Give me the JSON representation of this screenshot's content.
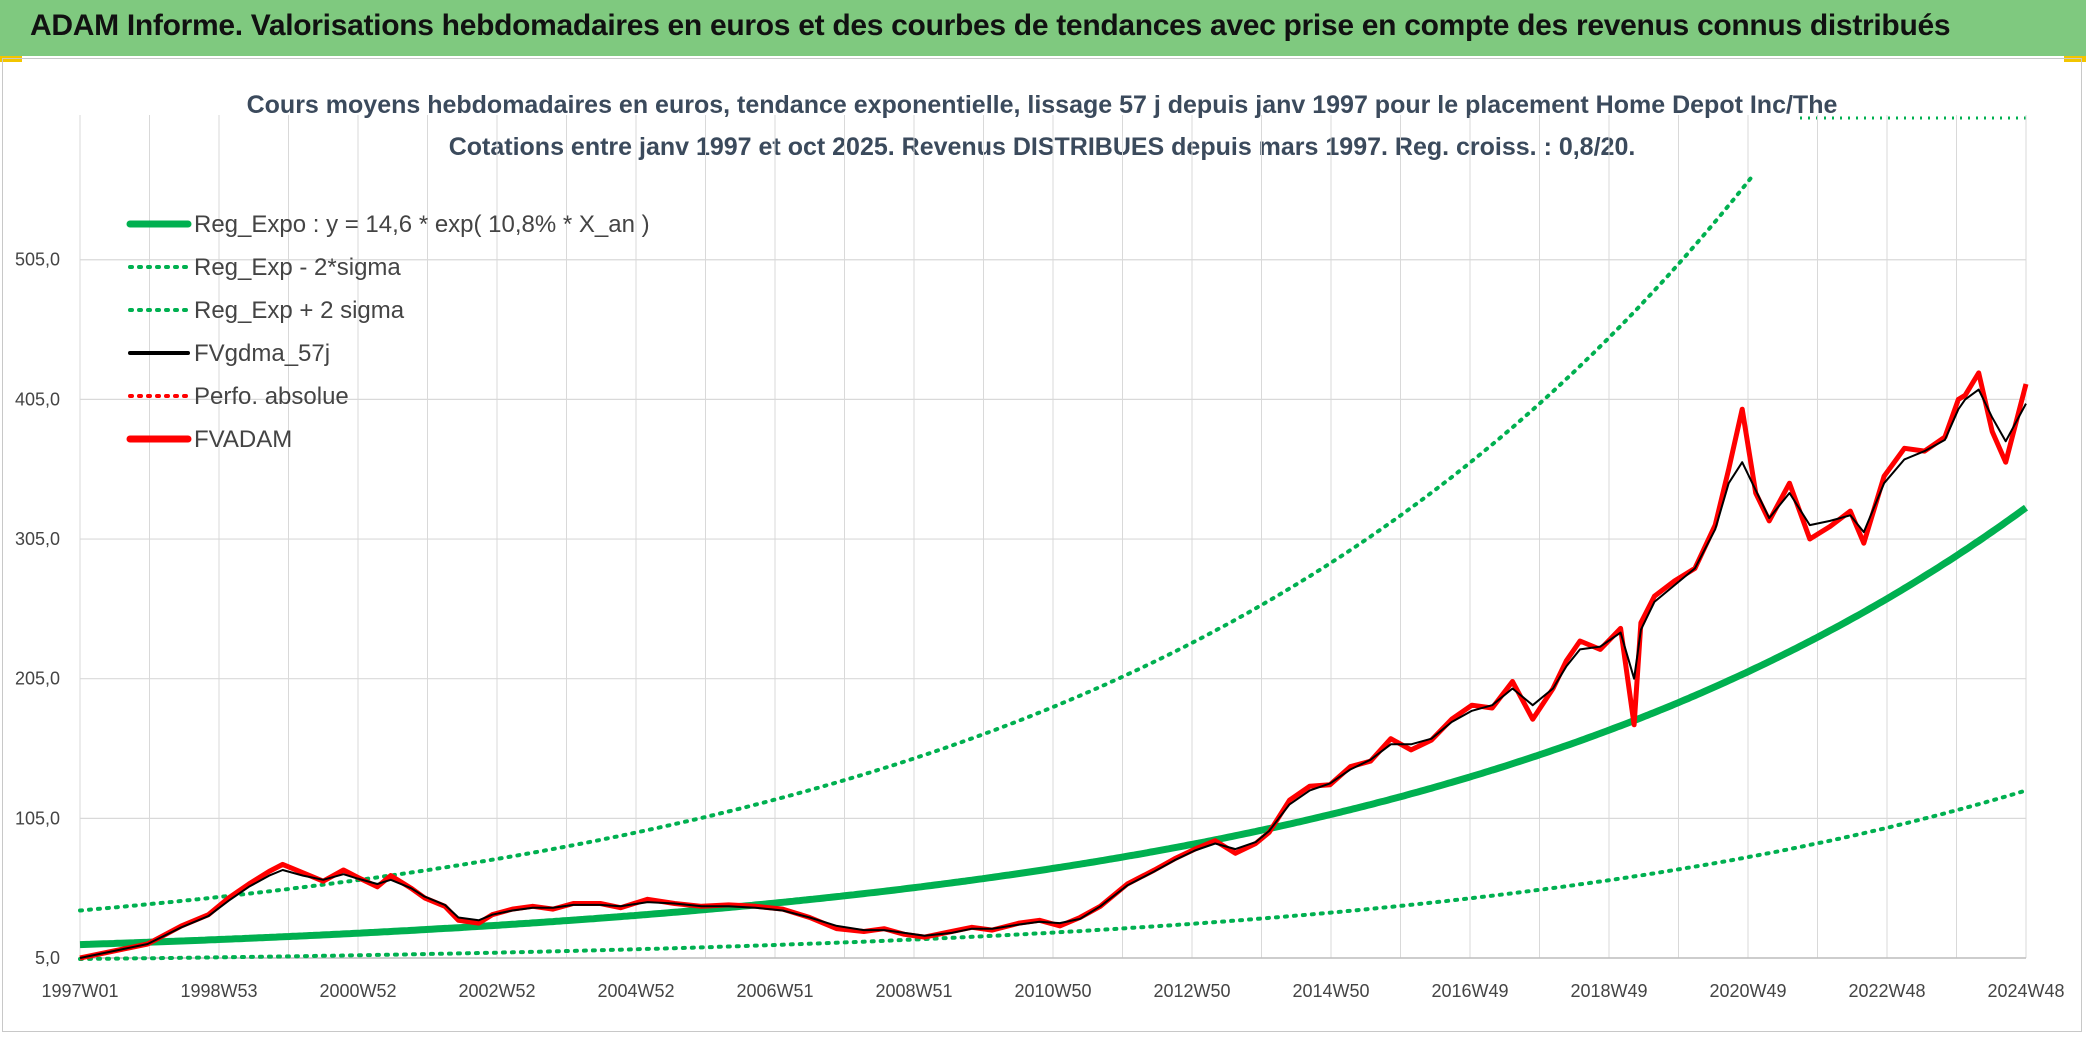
{
  "header": {
    "title": "ADAM Informe. Valorisations hebdomadaires en euros et des courbes de tendances avec prise en compte des revenus connus distribués"
  },
  "colors": {
    "header_bg": "#7fc97f",
    "trend": "#00b050",
    "fv": "#000000",
    "adam": "#ff0000",
    "perf": "#ff0000",
    "grid": "#d9d9d9"
  },
  "chart_data": {
    "type": "line",
    "title_line1": "Cours moyens hebdomadaires en euros, tendance exponentielle, lissage 57 j depuis janv 1997 pour le placement Home Depot Inc/The",
    "title_line2": "Cotations entre janv 1997 et oct 2025. Revenus DISTRIBUES depuis mars 1997. Reg. croiss. : 0,8/20.",
    "x_tick_labels": [
      "1997W01",
      "1998W53",
      "2000W52",
      "2002W52",
      "2004W52",
      "2006W51",
      "2008W51",
      "2010W50",
      "2012W50",
      "2014W50",
      "2016W49",
      "2018W49",
      "2020W49",
      "2022W48",
      "2024W48"
    ],
    "x_range": [
      1997.0,
      2025.8
    ],
    "y_tick_labels": [
      "5,0",
      "105,0",
      "205,0",
      "305,0",
      "405,0",
      "505,0"
    ],
    "ylim": [
      5,
      580
    ],
    "legend": [
      {
        "name": "Reg_Expo : y = 14,6 * exp( 10,8% *  X_an )",
        "style": "solid-thick",
        "color": "#00b050"
      },
      {
        "name": "Reg_Exp - 2*sigma",
        "style": "dotted",
        "color": "#00b050"
      },
      {
        "name": "Reg_Exp + 2 sigma",
        "style": "dotted",
        "color": "#00b050"
      },
      {
        "name": "FVgdma_57j",
        "style": "solid",
        "color": "#000000"
      },
      {
        "name": "Perfo. absolue",
        "style": "dotted",
        "color": "#ff0000"
      },
      {
        "name": "FVADAM",
        "style": "solid-thick",
        "color": "#ff0000"
      }
    ],
    "series": [
      {
        "name": "Reg_Expo",
        "formula": {
          "a": 14.6,
          "b": 0.108,
          "x0": 1997.0
        }
      },
      {
        "name": "Reg_Exp - 2*sigma",
        "formula": {
          "a": 4.3,
          "b": 0.117,
          "x0": 1997.0
        }
      },
      {
        "name": "Reg_Exp + 2 sigma",
        "formula": {
          "a": 39.0,
          "b": 0.108,
          "x0": 1997.0
        }
      },
      {
        "name": "FVADAM",
        "x": [
          1997.0,
          1997.5,
          1998.0,
          1998.5,
          1998.9,
          1999.2,
          1999.5,
          1999.8,
          2000.0,
          2000.3,
          2000.6,
          2000.9,
          2001.1,
          2001.4,
          2001.6,
          2001.9,
          2002.1,
          2002.4,
          2002.6,
          2002.9,
          2003.1,
          2003.4,
          2003.7,
          2004.0,
          2004.3,
          2004.7,
          2005.0,
          2005.4,
          2005.8,
          2006.2,
          2006.6,
          2007.0,
          2007.4,
          2007.8,
          2008.2,
          2008.6,
          2008.9,
          2009.2,
          2009.5,
          2009.9,
          2010.2,
          2010.5,
          2010.9,
          2011.2,
          2011.5,
          2011.8,
          2012.1,
          2012.5,
          2012.9,
          2013.2,
          2013.5,
          2013.8,
          2014.1,
          2014.4,
          2014.6,
          2014.9,
          2015.2,
          2015.5,
          2015.8,
          2016.1,
          2016.4,
          2016.7,
          2017.0,
          2017.3,
          2017.6,
          2017.9,
          2018.2,
          2018.5,
          2018.8,
          2019.0,
          2019.2,
          2019.5,
          2019.8,
          2020.0,
          2020.1,
          2020.3,
          2020.6,
          2020.9,
          2021.2,
          2021.4,
          2021.6,
          2021.8,
          2022.0,
          2022.3,
          2022.6,
          2022.9,
          2023.2,
          2023.4,
          2023.7,
          2024.0,
          2024.3,
          2024.6,
          2024.8,
          2024.9,
          2025.1,
          2025.3,
          2025.5,
          2025.8
        ],
        "values": [
          5,
          10,
          15,
          28,
          36,
          48,
          58,
          67,
          72,
          66,
          60,
          68,
          63,
          56,
          64,
          55,
          48,
          42,
          32,
          30,
          36,
          40,
          42,
          40,
          44,
          44,
          41,
          47,
          44,
          42,
          43,
          42,
          40,
          34,
          26,
          24,
          26,
          22,
          20,
          24,
          27,
          25,
          30,
          32,
          28,
          34,
          42,
          58,
          68,
          76,
          83,
          89,
          80,
          87,
          95,
          118,
          128,
          129,
          142,
          146,
          162,
          154,
          161,
          176,
          186,
          184,
          203,
          176,
          198,
          218,
          232,
          226,
          241,
          172,
          245,
          264,
          275,
          284,
          315,
          355,
          398,
          338,
          318,
          345,
          305,
          314,
          325,
          302,
          350,
          370,
          368,
          378,
          405,
          408,
          424,
          382,
          360,
          416
        ]
      },
      {
        "name": "FVgdma_57j",
        "x": [
          1997.0,
          1997.5,
          1998.0,
          1998.5,
          1998.9,
          1999.2,
          1999.5,
          1999.8,
          2000.0,
          2000.3,
          2000.6,
          2000.9,
          2001.1,
          2001.4,
          2001.6,
          2001.9,
          2002.1,
          2002.4,
          2002.6,
          2002.9,
          2003.1,
          2003.4,
          2003.7,
          2004.0,
          2004.3,
          2004.7,
          2005.0,
          2005.4,
          2005.8,
          2006.2,
          2006.6,
          2007.0,
          2007.4,
          2007.8,
          2008.2,
          2008.6,
          2008.9,
          2009.2,
          2009.5,
          2009.9,
          2010.2,
          2010.5,
          2010.9,
          2011.2,
          2011.5,
          2011.8,
          2012.1,
          2012.5,
          2012.9,
          2013.2,
          2013.5,
          2013.8,
          2014.1,
          2014.4,
          2014.6,
          2014.9,
          2015.2,
          2015.5,
          2015.8,
          2016.1,
          2016.4,
          2016.7,
          2017.0,
          2017.3,
          2017.6,
          2017.9,
          2018.2,
          2018.5,
          2018.8,
          2019.0,
          2019.2,
          2019.5,
          2019.8,
          2020.0,
          2020.1,
          2020.3,
          2020.6,
          2020.9,
          2021.2,
          2021.4,
          2021.6,
          2021.8,
          2022.0,
          2022.3,
          2022.6,
          2022.9,
          2023.2,
          2023.4,
          2023.7,
          2024.0,
          2024.3,
          2024.6,
          2024.8,
          2024.9,
          2025.1,
          2025.3,
          2025.5,
          2025.8
        ],
        "values": [
          5,
          10,
          15,
          27,
          35,
          46,
          56,
          64,
          68,
          64,
          61,
          65,
          62,
          58,
          61,
          55,
          49,
          43,
          34,
          32,
          36,
          39,
          41,
          41,
          43,
          43,
          42,
          45,
          44,
          42,
          42,
          41,
          39,
          34,
          28,
          25,
          25,
          23,
          21,
          23,
          26,
          26,
          29,
          31,
          30,
          33,
          42,
          57,
          67,
          75,
          82,
          87,
          83,
          88,
          96,
          115,
          125,
          130,
          140,
          147,
          158,
          158,
          162,
          174,
          182,
          186,
          198,
          186,
          198,
          214,
          226,
          228,
          238,
          205,
          240,
          260,
          272,
          284,
          312,
          345,
          360,
          340,
          320,
          338,
          315,
          318,
          322,
          310,
          345,
          362,
          368,
          376,
          398,
          405,
          412,
          392,
          375,
          402
        ]
      }
    ]
  }
}
